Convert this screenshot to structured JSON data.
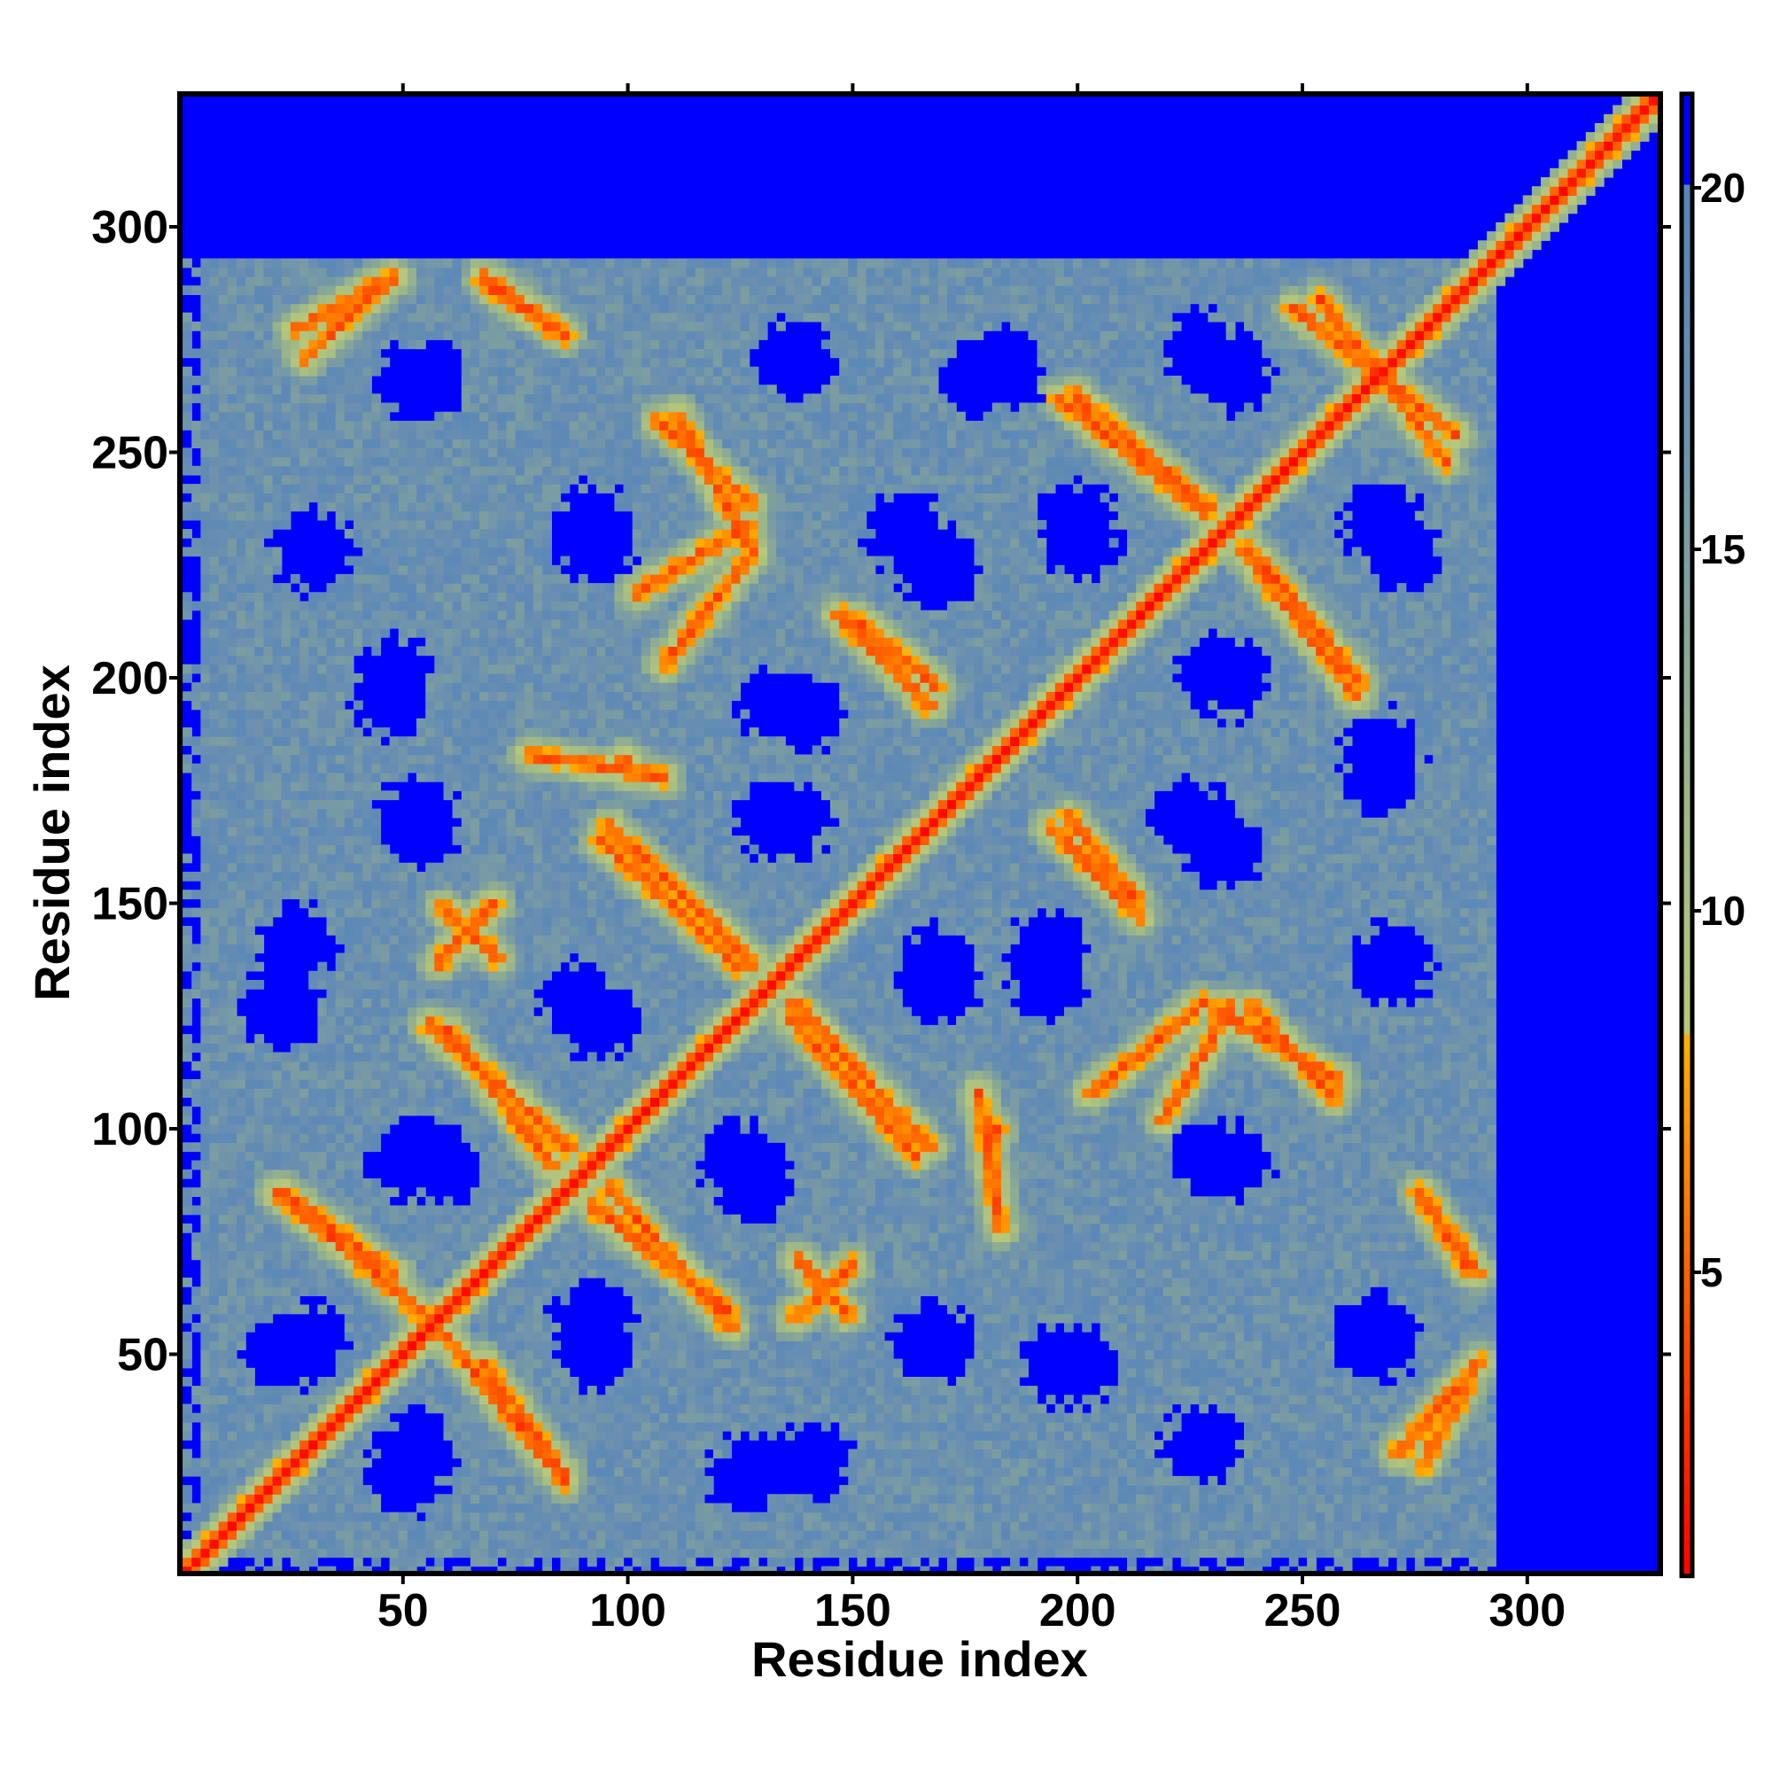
{
  "chart_data": {
    "type": "heatmap",
    "title": "",
    "xlabel": "Residue index",
    "ylabel": "Residue index",
    "xlim": [
      1,
      330
    ],
    "ylim": [
      1,
      330
    ],
    "x_ticks": [
      "50",
      "100",
      "150",
      "200",
      "250",
      "300"
    ],
    "y_ticks": [
      "50",
      "100",
      "150",
      "200",
      "250",
      "300"
    ],
    "grid": false,
    "colorbar": {
      "position": "right",
      "range": [
        0.8,
        21.3
      ],
      "ticks": [
        "5",
        "10",
        "15",
        "20"
      ],
      "stops": [
        [
          0.8,
          "#ff0000"
        ],
        [
          3,
          "#ff3000"
        ],
        [
          6,
          "#ff7a00"
        ],
        [
          8.3,
          "#ffb000"
        ],
        [
          8.31,
          "#b8c87a"
        ],
        [
          12,
          "#98b48a"
        ],
        [
          17,
          "#6a8fb0"
        ],
        [
          20,
          "#5585bb"
        ],
        [
          20.01,
          "#0000ff"
        ],
        [
          21.3,
          "#0000ff"
        ]
      ]
    },
    "matrix_model": {
      "description_units": "residue index / distance",
      "background_distance": 17,
      "far_distance": 21,
      "tail_start_residue": 292,
      "hole_radius": 9,
      "bands": [
        [
          57,
          57,
          86,
          22
        ],
        [
          56,
          123,
          87,
          96
        ],
        [
          59,
          149,
          71,
          138
        ],
        [
          94,
          164,
          125,
          136
        ],
        [
          92,
          83,
          122,
          60
        ],
        [
          137,
          58,
          150,
          70
        ],
        [
          137,
          128,
          167,
          96
        ],
        [
          178,
          108,
          183,
          78
        ],
        [
          147,
          214,
          167,
          194
        ],
        [
          198,
          169,
          213,
          151
        ],
        [
          203,
          108,
          228,
          128
        ],
        [
          228,
          128,
          258,
          111
        ],
        [
          238,
          229,
          263,
          199
        ],
        [
          196,
          262,
          228,
          237
        ],
        [
          248,
          282,
          284,
          254
        ],
        [
          276,
          86,
          289,
          68
        ],
        [
          271,
          28,
          289,
          48
        ],
        [
          23,
          86,
          48,
          68
        ],
        [
          26,
          277,
          44,
          287
        ],
        [
          69,
          287,
          84,
          277
        ],
        [
          102,
          219,
          127,
          234
        ],
        [
          107,
          257,
          127,
          239
        ],
        [
          95,
          180,
          100,
          182
        ]
      ],
      "holes": [
        [
          53,
          266
        ],
        [
          92,
          234
        ],
        [
          137,
          270
        ],
        [
          47,
          196
        ],
        [
          53,
          169
        ],
        [
          26,
          141
        ],
        [
          89,
          128
        ],
        [
          134,
          194
        ],
        [
          178,
          267
        ],
        [
          162,
          232
        ],
        [
          200,
          234
        ],
        [
          228,
          272
        ],
        [
          268,
          234
        ],
        [
          231,
          201
        ],
        [
          268,
          184
        ],
        [
          225,
          169
        ],
        [
          230,
          93
        ],
        [
          266,
          55
        ],
        [
          193,
          139
        ],
        [
          168,
          136
        ],
        [
          132,
          169
        ],
        [
          124,
          93
        ],
        [
          92,
          58
        ],
        [
          51,
          93
        ],
        [
          167,
          53
        ],
        [
          200,
          48
        ],
        [
          127,
          23
        ],
        [
          51,
          23
        ],
        [
          228,
          30
        ],
        [
          29,
          53
        ]
      ]
    }
  }
}
